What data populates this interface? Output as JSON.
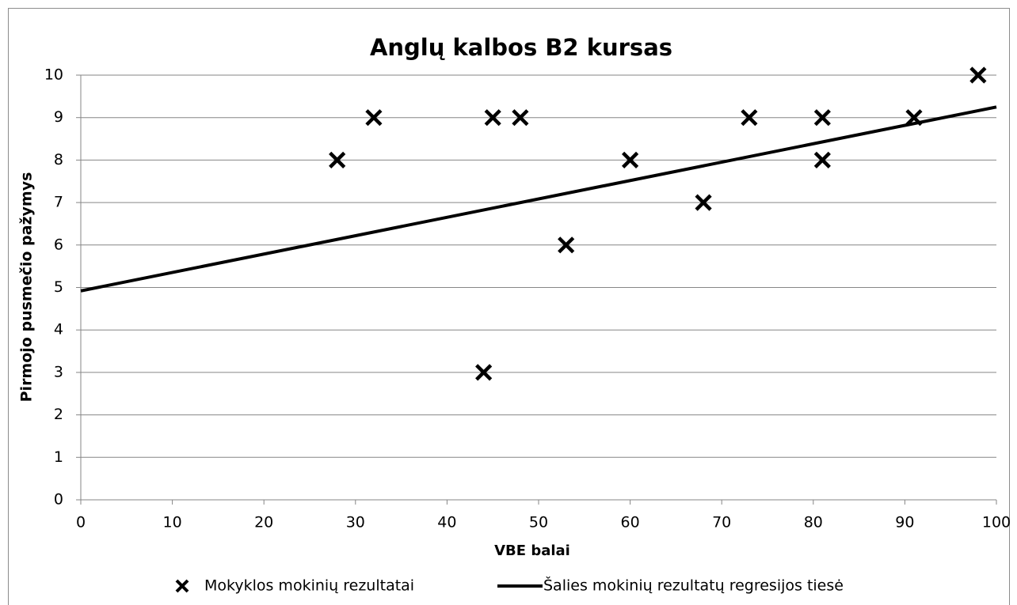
{
  "chart_data": {
    "type": "scatter",
    "title": "Anglų kalbos B2 kursas",
    "x_label": "VBE balai",
    "y_label": "Pirmojo pusmečio pažymys",
    "series": [
      {
        "name": "Mokyklos mokinių rezultatai",
        "type": "scatter",
        "color": "#000000",
        "x": [
          28,
          32,
          45,
          48,
          44,
          53,
          60,
          68,
          73,
          81,
          81,
          91,
          98
        ],
        "values": [
          8,
          9,
          9,
          9,
          3,
          6,
          8,
          7,
          9,
          9,
          8,
          9,
          10
        ]
      },
      {
        "name": "Šalies mokinių rezultatų regresijos tiesė",
        "type": "line",
        "color": "#000000",
        "x": [
          0,
          100
        ],
        "values": [
          4.92,
          9.25
        ]
      }
    ],
    "xlim": [
      0,
      100
    ],
    "xticks": [
      0,
      10,
      20,
      30,
      40,
      50,
      60,
      70,
      80,
      90,
      100
    ],
    "ylim": [
      0,
      10
    ],
    "yticks": [
      0,
      1,
      2,
      3,
      4,
      5,
      6,
      7,
      8,
      9,
      10
    ],
    "grid": true,
    "legend": "bottom"
  }
}
